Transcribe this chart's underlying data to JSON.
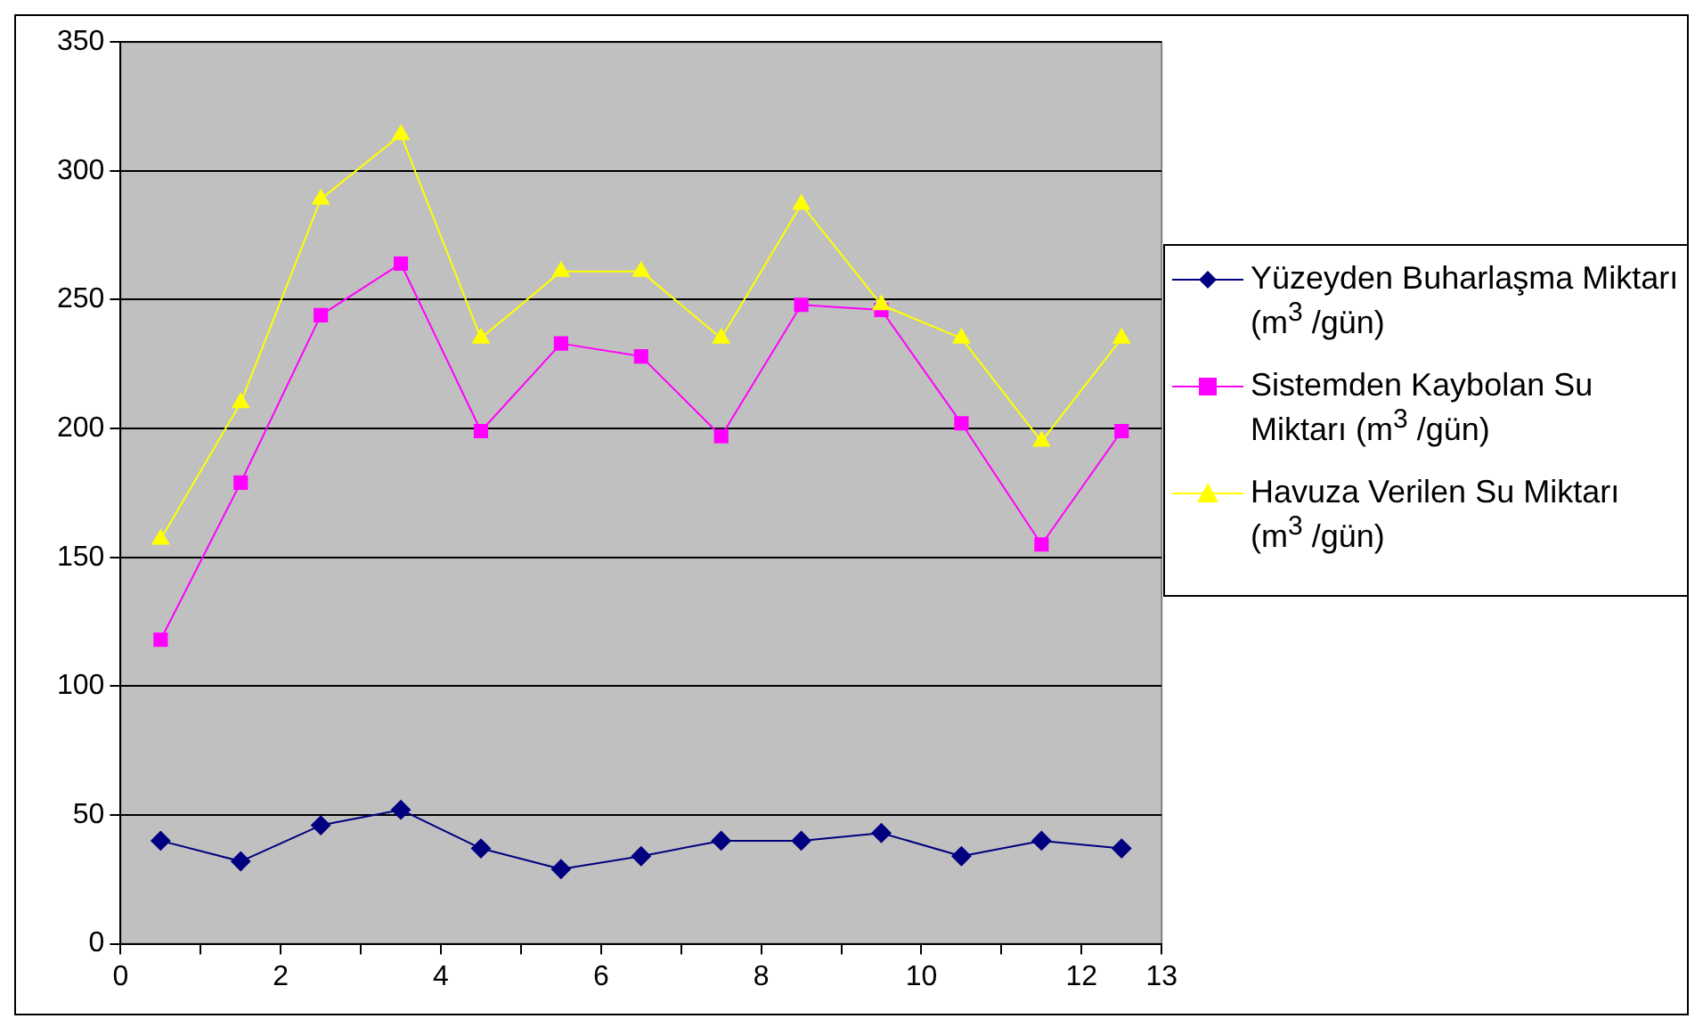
{
  "chart_data": {
    "type": "line",
    "x": [
      0.5,
      1.5,
      2.5,
      3.5,
      4.5,
      5.5,
      6.5,
      7.5,
      8.5,
      9.5,
      10.5,
      11.5,
      12.5
    ],
    "series": [
      {
        "name": "Yüzeyden Buharlaşma Miktarı (m$^{3}$ /gün)",
        "color": "#000080",
        "marker": "diamond",
        "values": [
          40,
          32,
          46,
          52,
          37,
          29,
          34,
          40,
          40,
          43,
          34,
          40,
          37
        ]
      },
      {
        "name": "Sistemden Kaybolan Su Miktarı (m$^{3}$ /gün)",
        "color": "#ff00ff",
        "marker": "square",
        "values": [
          118,
          179,
          244,
          264,
          199,
          233,
          228,
          197,
          248,
          246,
          202,
          155,
          199
        ]
      },
      {
        "name": "Havuza Verilen Su Miktarı (m$^{3}$ /gün)",
        "color": "#ffff00",
        "marker": "triangle",
        "values": [
          157,
          210,
          289,
          314,
          235,
          261,
          261,
          235,
          287,
          248,
          235,
          195,
          235
        ]
      }
    ],
    "xlim": [
      0,
      13
    ],
    "xticks": [
      0,
      {
        "value": 1,
        "label": null
      },
      2,
      {
        "value": 3,
        "label": null
      },
      4,
      {
        "value": 5,
        "label": null
      },
      6,
      {
        "value": 7,
        "label": null
      },
      8,
      {
        "value": 9,
        "label": null
      },
      10,
      {
        "value": 11,
        "label": null
      },
      12,
      13
    ],
    "ylim": [
      0,
      350
    ],
    "yticks": [
      0,
      50,
      100,
      150,
      200,
      250,
      300,
      350
    ],
    "grid": "y",
    "legend": "right",
    "line_style": "solid"
  }
}
